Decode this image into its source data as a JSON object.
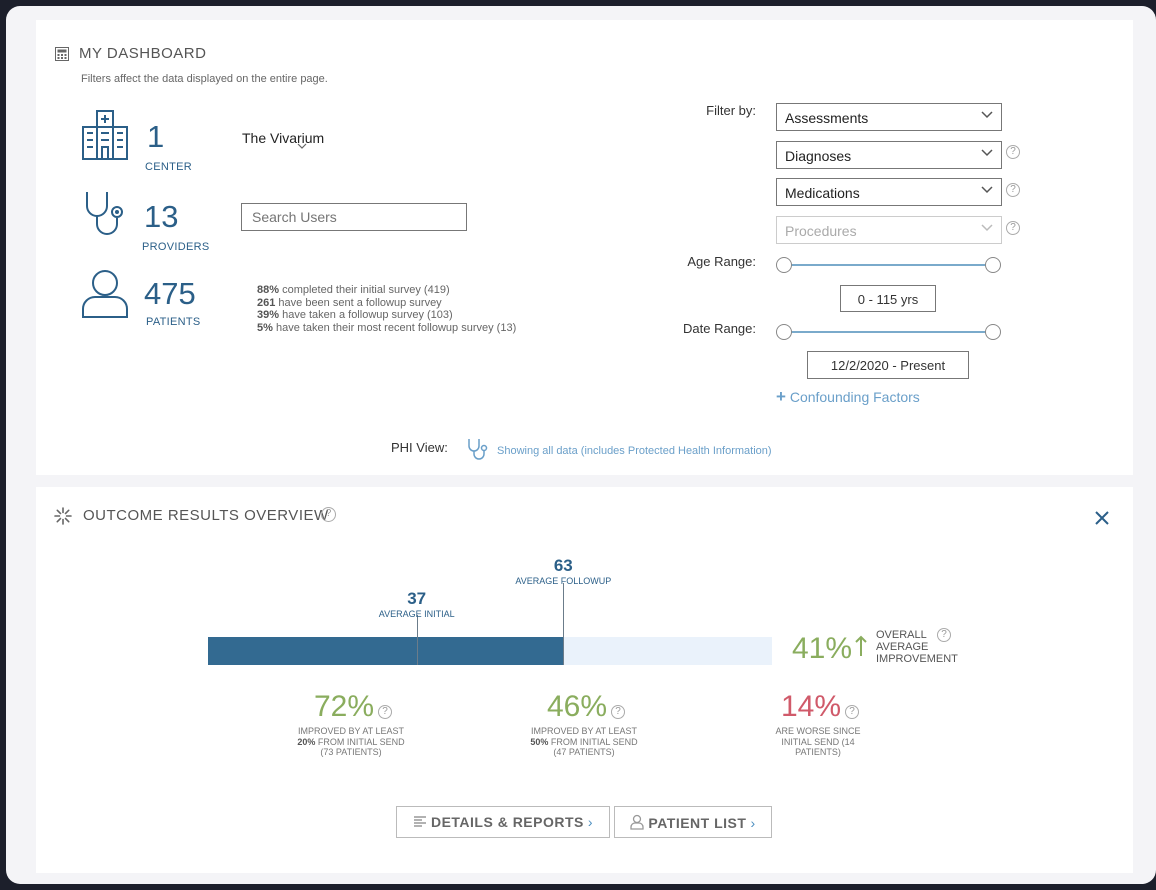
{
  "dashboard": {
    "title": "MY DASHBOARD",
    "subtitle": "Filters affect the data displayed on the entire page.",
    "center": {
      "count": "1",
      "label": "CENTER",
      "name": "The Vivarium"
    },
    "providers": {
      "count": "13",
      "label": "PROVIDERS"
    },
    "search": {
      "placeholder": "Search Users"
    },
    "patients": {
      "count": "475",
      "label": "PATIENTS"
    },
    "survey_lines": [
      {
        "bold": "88%",
        "text": " completed their initial survey (419)"
      },
      {
        "bold": "261",
        "text": " have been sent a followup survey"
      },
      {
        "bold": "39%",
        "text": " have taken a followup survey (103)"
      },
      {
        "bold": "5%",
        "text": " have taken their most recent followup survey (13)"
      }
    ]
  },
  "filters": {
    "filter_by_label": "Filter by:",
    "selects": [
      {
        "value": "Assessments",
        "disabled": false
      },
      {
        "value": "Diagnoses",
        "disabled": false
      },
      {
        "value": "Medications",
        "disabled": false
      },
      {
        "value": "Procedures",
        "disabled": true
      }
    ],
    "age_range_label": "Age Range:",
    "age_range_value": "0 - 115 yrs",
    "date_range_label": "Date Range:",
    "date_range_value": "12/2/2020 - Present",
    "confounding": "Confounding Factors",
    "help_glyph": "?"
  },
  "phi": {
    "label": "PHI View:",
    "text": "Showing all data (includes Protected Health Information)"
  },
  "outcome": {
    "title": "OUTCOME RESULTS OVERVIEW",
    "avg_initial_value": "37",
    "avg_initial_label": "AVERAGE INITIAL",
    "avg_followup_value": "63",
    "avg_followup_label": "AVERAGE FOLLOWUP",
    "bar_max": 100,
    "overall_pct": "41%",
    "overall_label_1": "OVERALL",
    "overall_label_2": "AVERAGE",
    "overall_label_3": "IMPROVEMENT",
    "stats": [
      {
        "pct": "72%",
        "line1": "IMPROVED BY AT LEAST",
        "bold": "20%",
        "line2": " FROM INITIAL SEND",
        "line3": "(73 PATIENTS)",
        "color": "#8aad5e"
      },
      {
        "pct": "46%",
        "line1": "IMPROVED BY AT LEAST",
        "bold": "50%",
        "line2": " FROM INITIAL SEND",
        "line3": "(47 PATIENTS)",
        "color": "#8aad5e"
      },
      {
        "pct": "14%",
        "line1": "ARE WORSE SINCE",
        "bold": "",
        "line2": "INITIAL SEND (14",
        "line3": "PATIENTS)",
        "color": "#d05a6a"
      }
    ],
    "details_button": "DETAILS & REPORTS",
    "patient_list_button": "PATIENT LIST",
    "chevron": "›"
  },
  "colors": {
    "brand_blue": "#2b5f88",
    "bar_fill": "#336a91",
    "bar_bg": "#eaf2fb",
    "green": "#8aad5e",
    "red": "#d05a6a",
    "link_blue": "#4d8fc0"
  }
}
